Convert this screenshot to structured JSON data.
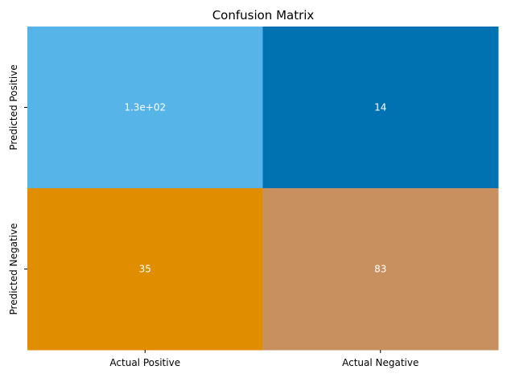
{
  "chart_data": {
    "type": "heatmap",
    "title": "Confusion Matrix",
    "xlabel": "",
    "ylabel": "",
    "x_categories": [
      "Actual Positive",
      "Actual Negative"
    ],
    "y_categories": [
      "Predicted Positive",
      "Predicted Negative"
    ],
    "values": [
      [
        130,
        14
      ],
      [
        35,
        83
      ]
    ],
    "cell_labels": [
      [
        "1.3e+02",
        "14"
      ],
      [
        "35",
        "83"
      ]
    ],
    "cell_colors": [
      [
        "#56b4e9",
        "#0072b2"
      ],
      [
        "#e08e00",
        "#c9905f"
      ]
    ],
    "colorbar": false,
    "grid": false
  }
}
